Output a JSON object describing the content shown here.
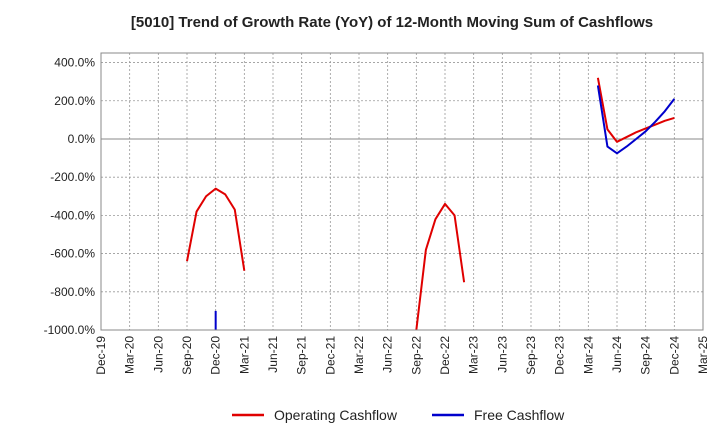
{
  "chart_data": {
    "type": "line",
    "title": "[5010]  Trend of Growth Rate (YoY) of 12-Month Moving Sum of Cashflows",
    "xlabel": "",
    "ylabel": "",
    "x_ticks": [
      "Dec-19",
      "Mar-20",
      "Jun-20",
      "Sep-20",
      "Dec-20",
      "Mar-21",
      "Jun-21",
      "Sep-21",
      "Dec-21",
      "Mar-22",
      "Jun-22",
      "Sep-22",
      "Dec-22",
      "Mar-23",
      "Jun-23",
      "Sep-23",
      "Dec-23",
      "Mar-24",
      "Jun-24",
      "Sep-24",
      "Dec-24",
      "Mar-25"
    ],
    "y_ticks": [
      "400.0%",
      "200.0%",
      "0.0%",
      "-200.0%",
      "-400.0%",
      "-600.0%",
      "-800.0%",
      "-1000.0%"
    ],
    "y_tick_values": [
      400,
      200,
      0,
      -200,
      -400,
      -600,
      -800,
      -1000
    ],
    "ylim": [
      -1000,
      450
    ],
    "grid": true,
    "legend_position": "bottom",
    "series": [
      {
        "name": "Operating Cashflow",
        "color": "#e00000",
        "points": [
          {
            "x": "Sep-20",
            "y": -640
          },
          {
            "x": "Oct-20",
            "y": -380
          },
          {
            "x": "Nov-20",
            "y": -300
          },
          {
            "x": "Dec-20",
            "y": -260
          },
          {
            "x": "Jan-21",
            "y": -290
          },
          {
            "x": "Feb-21",
            "y": -370
          },
          {
            "x": "Mar-21",
            "y": -690
          },
          {
            "x": "Sep-22",
            "y": -1000
          },
          {
            "x": "Oct-22",
            "y": -580
          },
          {
            "x": "Nov-22",
            "y": -420
          },
          {
            "x": "Dec-22",
            "y": -340
          },
          {
            "x": "Jan-23",
            "y": -400
          },
          {
            "x": "Feb-23",
            "y": -750
          },
          {
            "x": "Apr-24",
            "y": 320
          },
          {
            "x": "May-24",
            "y": 50
          },
          {
            "x": "Jun-24",
            "y": -15
          },
          {
            "x": "Jul-24",
            "y": 10
          },
          {
            "x": "Aug-24",
            "y": 35
          },
          {
            "x": "Sep-24",
            "y": 55
          },
          {
            "x": "Oct-24",
            "y": 75
          },
          {
            "x": "Nov-24",
            "y": 95
          },
          {
            "x": "Dec-24",
            "y": 110
          }
        ]
      },
      {
        "name": "Free Cashflow",
        "color": "#0000cc",
        "points": [
          {
            "x": "Dec-20",
            "y": -900
          },
          {
            "x": "Dec-20",
            "y": -1000
          },
          {
            "x": "Apr-24",
            "y": 280
          },
          {
            "x": "May-24",
            "y": -40
          },
          {
            "x": "Jun-24",
            "y": -75
          },
          {
            "x": "Jul-24",
            "y": -40
          },
          {
            "x": "Aug-24",
            "y": 0
          },
          {
            "x": "Sep-24",
            "y": 40
          },
          {
            "x": "Oct-24",
            "y": 90
          },
          {
            "x": "Nov-24",
            "y": 145
          },
          {
            "x": "Dec-24",
            "y": 210
          }
        ]
      }
    ]
  }
}
